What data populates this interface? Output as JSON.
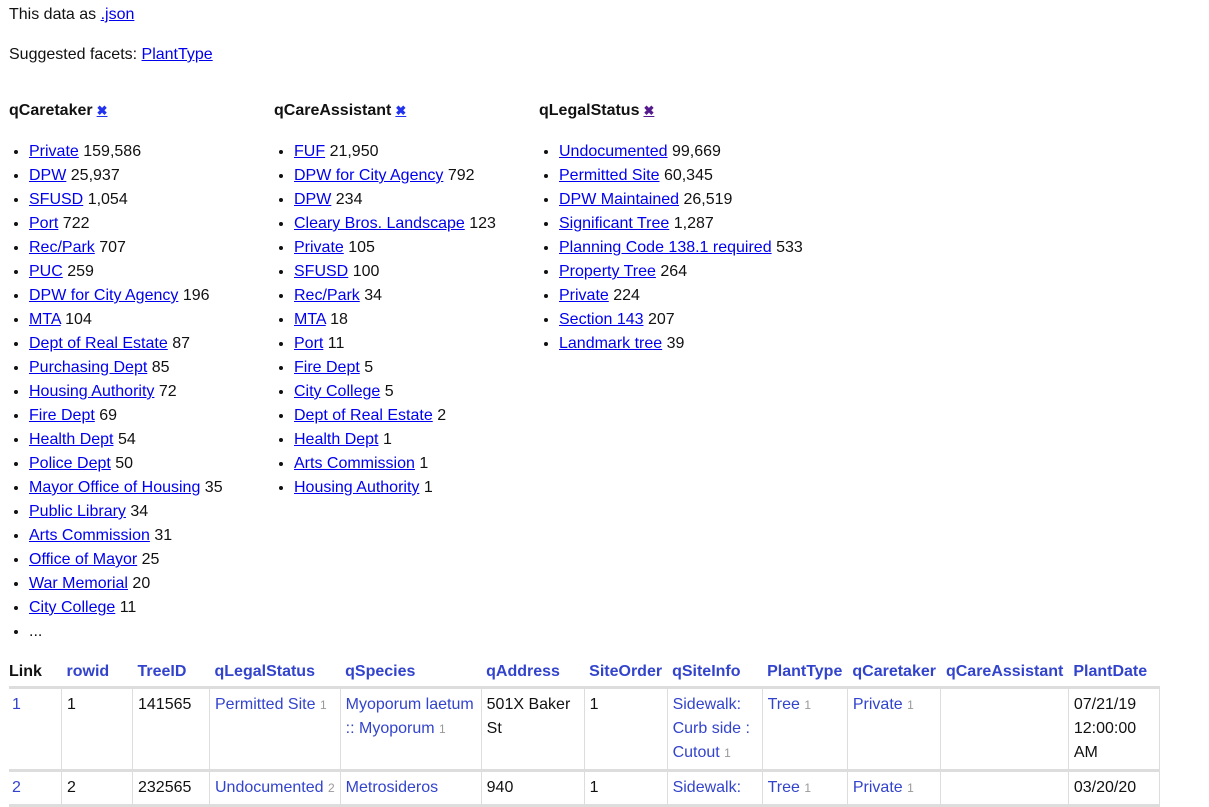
{
  "header": {
    "data_prefix": "This data as ",
    "json_link": ".json",
    "suggested_label": "Suggested facets: ",
    "suggested": [
      "PlantType"
    ]
  },
  "facets": [
    {
      "name": "qCaretaker",
      "items": [
        [
          "Private",
          "159,586"
        ],
        [
          "DPW",
          "25,937"
        ],
        [
          "SFUSD",
          "1,054"
        ],
        [
          "Port",
          "722"
        ],
        [
          "Rec/Park",
          "707"
        ],
        [
          "PUC",
          "259"
        ],
        [
          "DPW for City Agency",
          "196"
        ],
        [
          "MTA",
          "104"
        ],
        [
          "Dept of Real Estate",
          "87"
        ],
        [
          "Purchasing Dept",
          "85"
        ],
        [
          "Housing Authority",
          "72"
        ],
        [
          "Fire Dept",
          "69"
        ],
        [
          "Health Dept",
          "54"
        ],
        [
          "Police Dept",
          "50"
        ],
        [
          "Mayor Office of Housing",
          "35"
        ],
        [
          "Public Library",
          "34"
        ],
        [
          "Arts Commission",
          "31"
        ],
        [
          "Office of Mayor",
          "25"
        ],
        [
          "War Memorial",
          "20"
        ],
        [
          "City College",
          "11"
        ]
      ],
      "more": "..."
    },
    {
      "name": "qCareAssistant",
      "items": [
        [
          "FUF",
          "21,950"
        ],
        [
          "DPW for City Agency",
          "792"
        ],
        [
          "DPW",
          "234"
        ],
        [
          "Cleary Bros. Landscape",
          "123"
        ],
        [
          "Private",
          "105"
        ],
        [
          "SFUSD",
          "100"
        ],
        [
          "Rec/Park",
          "34"
        ],
        [
          "MTA",
          "18"
        ],
        [
          "Port",
          "11"
        ],
        [
          "Fire Dept",
          "5"
        ],
        [
          "City College",
          "5"
        ],
        [
          "Dept of Real Estate",
          "2"
        ],
        [
          "Health Dept",
          "1"
        ],
        [
          "Arts Commission",
          "1"
        ],
        [
          "Housing Authority",
          "1"
        ]
      ]
    },
    {
      "name": "qLegalStatus",
      "items": [
        [
          "Undocumented",
          "99,669"
        ],
        [
          "Permitted Site",
          "60,345"
        ],
        [
          "DPW Maintained",
          "26,519"
        ],
        [
          "Significant Tree",
          "1,287"
        ],
        [
          "Planning Code 138.1 required",
          "533"
        ],
        [
          "Property Tree",
          "264"
        ],
        [
          "Private",
          "224"
        ],
        [
          "Section 143",
          "207"
        ],
        [
          "Landmark tree",
          "39"
        ]
      ]
    }
  ],
  "facet_remove_icon": "✖",
  "table": {
    "columns": [
      "Link",
      "rowid",
      "TreeID",
      "qLegalStatus",
      "qSpecies",
      "qAddress",
      "SiteOrder",
      "qSiteInfo",
      "PlantType",
      "qCaretaker",
      "qCareAssistant",
      "PlantDate"
    ],
    "rows": [
      {
        "link": "1",
        "rowid": "1",
        "treeid": "141565",
        "legal": "Permitted Site",
        "legal_n": "1",
        "species": "Myoporum laetum :: Myoporum",
        "species_n": "1",
        "address": "501X Baker St",
        "siteorder": "1",
        "siteinfo": "Sidewalk: Curb side : Cutout",
        "siteinfo_n": "1",
        "planttype": "Tree",
        "planttype_n": "1",
        "caretaker": "Private",
        "caretaker_n": "1",
        "careassistant": "",
        "plantdate": "07/21/19 12:00:00 AM"
      },
      {
        "link": "2",
        "rowid": "2",
        "treeid": "232565",
        "legal": "Undocumented",
        "legal_n": "2",
        "species": "Metrosideros",
        "species_n": "",
        "address": "940",
        "siteorder": "1",
        "siteinfo": "Sidewalk:",
        "siteinfo_n": "",
        "planttype": "Tree",
        "planttype_n": "1",
        "caretaker": "Private",
        "caretaker_n": "1",
        "careassistant": "",
        "plantdate": "03/20/20"
      }
    ]
  }
}
